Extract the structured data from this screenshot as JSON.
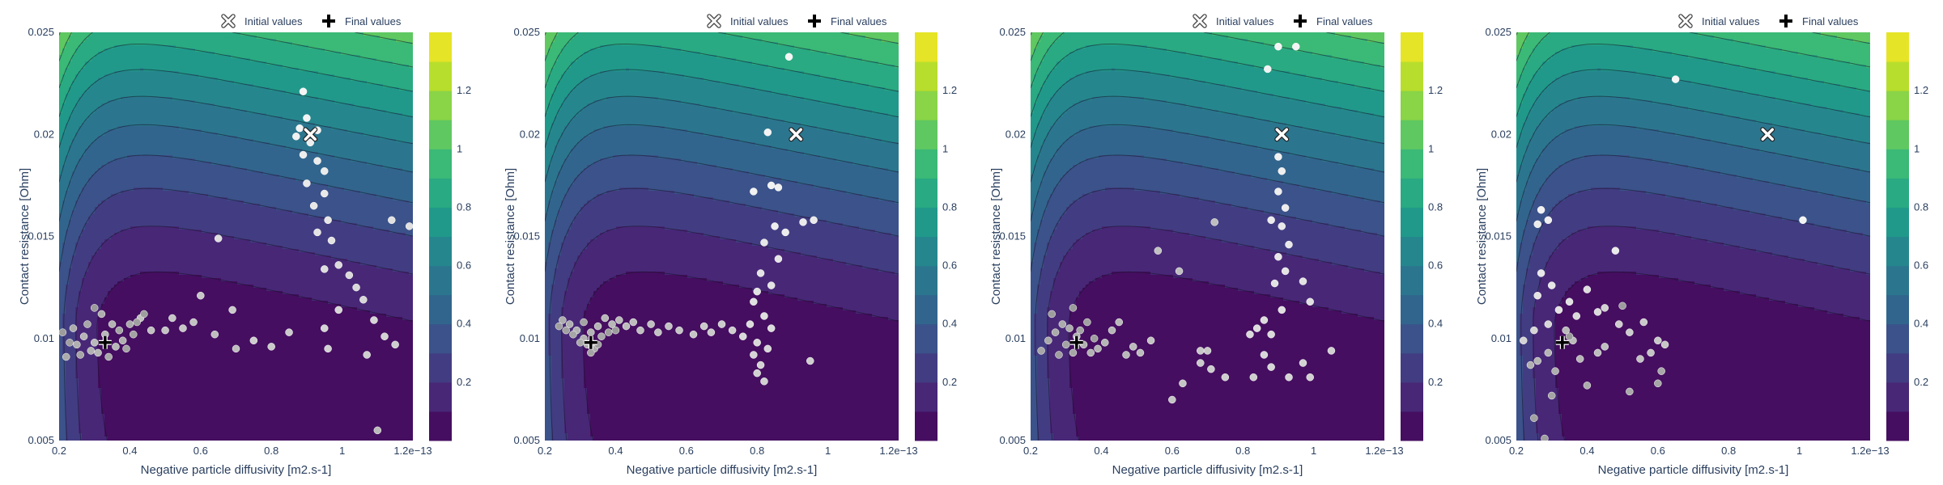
{
  "chart_data": [
    {
      "type": "contour",
      "xlabel": "Negative particle diffusivity [m2.s-1]",
      "ylabel": "Contact resistance [Ohm]",
      "xlim": [
        0.2,
        1.2
      ],
      "ylim": [
        0.005,
        0.025
      ],
      "xticks": [
        "0.2",
        "0.4",
        "0.6",
        "0.8",
        "1",
        "1.2e−13"
      ],
      "xtick_values": [
        0.2,
        0.4,
        0.6,
        0.8,
        1.0,
        1.2
      ],
      "yticks": [
        "0.005",
        "0.01",
        "0.015",
        "0.02",
        "0.025"
      ],
      "ytick_values": [
        0.005,
        0.01,
        0.015,
        0.02,
        0.025
      ],
      "colorbar_ticks": [
        "0.2",
        "0.4",
        "0.6",
        "0.8",
        "1",
        "1.2"
      ],
      "colorbar_range": [
        0,
        1.4
      ],
      "legend": [
        "Initial values",
        "Final values"
      ],
      "legend_position": "top-right",
      "initial_value": [
        0.91,
        0.02
      ],
      "final_value": [
        0.33,
        0.0098
      ],
      "contour_levels": [
        0.1,
        0.2,
        0.3,
        0.4,
        0.5,
        0.6,
        0.7,
        0.8,
        0.9,
        1.0,
        1.1,
        1.2,
        1.3
      ],
      "points": [
        [
          0.89,
          0.0221
        ],
        [
          0.9,
          0.0208
        ],
        [
          0.88,
          0.0203
        ],
        [
          0.93,
          0.0202
        ],
        [
          0.87,
          0.0199
        ],
        [
          0.91,
          0.0196
        ],
        [
          0.89,
          0.019
        ],
        [
          0.93,
          0.0187
        ],
        [
          0.95,
          0.0182
        ],
        [
          0.9,
          0.0176
        ],
        [
          0.95,
          0.0171
        ],
        [
          0.92,
          0.0165
        ],
        [
          0.96,
          0.0158
        ],
        [
          0.93,
          0.0152
        ],
        [
          0.97,
          0.0148
        ],
        [
          1.14,
          0.0158
        ],
        [
          1.19,
          0.0155
        ],
        [
          0.65,
          0.0149
        ],
        [
          0.95,
          0.0134
        ],
        [
          0.99,
          0.0136
        ],
        [
          1.02,
          0.0131
        ],
        [
          1.04,
          0.0125
        ],
        [
          1.06,
          0.0119
        ],
        [
          0.99,
          0.0114
        ],
        [
          1.09,
          0.0109
        ],
        [
          0.95,
          0.0105
        ],
        [
          1.12,
          0.0101
        ],
        [
          0.96,
          0.0095
        ],
        [
          1.07,
          0.0092
        ],
        [
          1.15,
          0.0097
        ],
        [
          0.75,
          0.0099
        ],
        [
          0.85,
          0.0103
        ],
        [
          0.8,
          0.0096
        ],
        [
          0.69,
          0.0114
        ],
        [
          0.6,
          0.0121
        ],
        [
          0.55,
          0.0105
        ],
        [
          0.52,
          0.011
        ],
        [
          0.5,
          0.0104
        ],
        [
          0.58,
          0.0108
        ],
        [
          0.43,
          0.011
        ],
        [
          0.46,
          0.0104
        ],
        [
          0.64,
          0.0102
        ],
        [
          0.7,
          0.0095
        ],
        [
          1.1,
          0.0055
        ],
        [
          0.3,
          0.0098
        ],
        [
          0.33,
          0.0102
        ],
        [
          0.36,
          0.0096
        ],
        [
          0.31,
          0.0093
        ],
        [
          0.27,
          0.0101
        ],
        [
          0.35,
          0.0107
        ],
        [
          0.29,
          0.0094
        ],
        [
          0.25,
          0.0097
        ],
        [
          0.38,
          0.0099
        ],
        [
          0.32,
          0.0112
        ],
        [
          0.24,
          0.0105
        ],
        [
          0.22,
          0.0091
        ],
        [
          0.4,
          0.0107
        ],
        [
          0.34,
          0.0091
        ],
        [
          0.28,
          0.0107
        ],
        [
          0.26,
          0.0092
        ],
        [
          0.37,
          0.0104
        ],
        [
          0.39,
          0.0095
        ],
        [
          0.41,
          0.0102
        ],
        [
          0.23,
          0.0098
        ],
        [
          0.42,
          0.0108
        ],
        [
          0.44,
          0.0112
        ],
        [
          0.21,
          0.0103
        ],
        [
          0.3,
          0.0115
        ]
      ]
    },
    {
      "type": "contour",
      "xlabel": "Negative particle diffusivity [m2.s-1]",
      "ylabel": "Contact resistance [Ohm]",
      "xlim": [
        0.2,
        1.2
      ],
      "ylim": [
        0.005,
        0.025
      ],
      "xticks": [
        "0.2",
        "0.4",
        "0.6",
        "0.8",
        "1",
        "1.2e−13"
      ],
      "xtick_values": [
        0.2,
        0.4,
        0.6,
        0.8,
        1.0,
        1.2
      ],
      "yticks": [
        "0.005",
        "0.01",
        "0.015",
        "0.02",
        "0.025"
      ],
      "ytick_values": [
        0.005,
        0.01,
        0.015,
        0.02,
        0.025
      ],
      "colorbar_ticks": [
        "0.2",
        "0.4",
        "0.6",
        "0.8",
        "1",
        "1.2"
      ],
      "colorbar_range": [
        0,
        1.4
      ],
      "legend": [
        "Initial values",
        "Final values"
      ],
      "legend_position": "top-right",
      "initial_value": [
        0.91,
        0.02
      ],
      "final_value": [
        0.33,
        0.0098
      ],
      "contour_levels": [
        0.1,
        0.2,
        0.3,
        0.4,
        0.5,
        0.6,
        0.7,
        0.8,
        0.9,
        1.0,
        1.1,
        1.2,
        1.3
      ],
      "points": [
        [
          0.89,
          0.0238
        ],
        [
          0.83,
          0.0201
        ],
        [
          0.79,
          0.0172
        ],
        [
          0.84,
          0.0175
        ],
        [
          0.86,
          0.0174
        ],
        [
          0.85,
          0.0155
        ],
        [
          0.88,
          0.0152
        ],
        [
          0.93,
          0.0157
        ],
        [
          0.96,
          0.0158
        ],
        [
          0.82,
          0.0147
        ],
        [
          0.86,
          0.0139
        ],
        [
          0.81,
          0.0132
        ],
        [
          0.84,
          0.0126
        ],
        [
          0.8,
          0.0123
        ],
        [
          0.79,
          0.0118
        ],
        [
          0.82,
          0.0111
        ],
        [
          0.78,
          0.0107
        ],
        [
          0.84,
          0.0105
        ],
        [
          0.76,
          0.0101
        ],
        [
          0.8,
          0.0098
        ],
        [
          0.83,
          0.0095
        ],
        [
          0.79,
          0.0092
        ],
        [
          0.81,
          0.0087
        ],
        [
          0.8,
          0.0083
        ],
        [
          0.82,
          0.0079
        ],
        [
          0.95,
          0.0089
        ],
        [
          0.73,
          0.0104
        ],
        [
          0.7,
          0.0107
        ],
        [
          0.67,
          0.0103
        ],
        [
          0.65,
          0.0106
        ],
        [
          0.62,
          0.0102
        ],
        [
          0.58,
          0.0104
        ],
        [
          0.55,
          0.0106
        ],
        [
          0.52,
          0.0103
        ],
        [
          0.5,
          0.0107
        ],
        [
          0.47,
          0.0104
        ],
        [
          0.45,
          0.0108
        ],
        [
          0.43,
          0.0106
        ],
        [
          0.41,
          0.0109
        ],
        [
          0.39,
          0.0107
        ],
        [
          0.37,
          0.011
        ],
        [
          0.35,
          0.0106
        ],
        [
          0.33,
          0.0103
        ],
        [
          0.31,
          0.01
        ],
        [
          0.29,
          0.0104
        ],
        [
          0.27,
          0.0107
        ],
        [
          0.25,
          0.0109
        ],
        [
          0.32,
          0.0097
        ],
        [
          0.34,
          0.0095
        ],
        [
          0.3,
          0.0098
        ],
        [
          0.36,
          0.0101
        ],
        [
          0.28,
          0.0102
        ],
        [
          0.33,
          0.0093
        ],
        [
          0.31,
          0.0108
        ],
        [
          0.26,
          0.0104
        ],
        [
          0.24,
          0.0106
        ],
        [
          0.38,
          0.0103
        ],
        [
          0.35,
          0.0097
        ],
        [
          0.4,
          0.0104
        ]
      ]
    },
    {
      "type": "contour",
      "xlabel": "Negative particle diffusivity [m2.s-1]",
      "ylabel": "Contact resistance [Ohm]",
      "xlim": [
        0.2,
        1.2
      ],
      "ylim": [
        0.005,
        0.025
      ],
      "xticks": [
        "0.2",
        "0.4",
        "0.6",
        "0.8",
        "1",
        "1.2e−13"
      ],
      "xtick_values": [
        0.2,
        0.4,
        0.6,
        0.8,
        1.0,
        1.2
      ],
      "yticks": [
        "0.005",
        "0.01",
        "0.015",
        "0.02",
        "0.025"
      ],
      "ytick_values": [
        0.005,
        0.01,
        0.015,
        0.02,
        0.025
      ],
      "colorbar_ticks": [
        "0.2",
        "0.4",
        "0.6",
        "0.8",
        "1",
        "1.2"
      ],
      "colorbar_range": [
        0,
        1.4
      ],
      "legend": [
        "Initial values",
        "Final values"
      ],
      "legend_position": "top-right",
      "initial_value": [
        0.91,
        0.02
      ],
      "final_value": [
        0.33,
        0.0098
      ],
      "contour_levels": [
        0.1,
        0.2,
        0.3,
        0.4,
        0.5,
        0.6,
        0.7,
        0.8,
        0.9,
        1.0,
        1.1,
        1.2,
        1.3
      ],
      "points": [
        [
          0.9,
          0.0243
        ],
        [
          0.95,
          0.0243
        ],
        [
          0.87,
          0.0232
        ],
        [
          0.9,
          0.0189
        ],
        [
          0.91,
          0.0182
        ],
        [
          0.9,
          0.0172
        ],
        [
          0.92,
          0.0164
        ],
        [
          0.88,
          0.0158
        ],
        [
          0.91,
          0.0155
        ],
        [
          0.93,
          0.0146
        ],
        [
          0.9,
          0.014
        ],
        [
          0.92,
          0.0133
        ],
        [
          0.89,
          0.0127
        ],
        [
          0.97,
          0.0128
        ],
        [
          0.99,
          0.0118
        ],
        [
          0.91,
          0.0114
        ],
        [
          0.84,
          0.0105
        ],
        [
          0.86,
          0.0109
        ],
        [
          0.88,
          0.0102
        ],
        [
          0.82,
          0.0102
        ],
        [
          0.86,
          0.0092
        ],
        [
          0.88,
          0.0086
        ],
        [
          0.93,
          0.0081
        ],
        [
          0.97,
          0.0088
        ],
        [
          0.99,
          0.0081
        ],
        [
          1.05,
          0.0094
        ],
        [
          0.83,
          0.0081
        ],
        [
          0.75,
          0.0081
        ],
        [
          0.71,
          0.0085
        ],
        [
          0.68,
          0.0088
        ],
        [
          0.68,
          0.0094
        ],
        [
          0.7,
          0.0094
        ],
        [
          0.63,
          0.0078
        ],
        [
          0.6,
          0.007
        ],
        [
          0.54,
          0.0099
        ],
        [
          0.56,
          0.0143
        ],
        [
          0.62,
          0.0133
        ],
        [
          0.72,
          0.0157
        ],
        [
          0.51,
          0.0093
        ],
        [
          0.49,
          0.0096
        ],
        [
          0.47,
          0.0092
        ],
        [
          0.45,
          0.0108
        ],
        [
          0.43,
          0.0104
        ],
        [
          0.41,
          0.0098
        ],
        [
          0.39,
          0.0095
        ],
        [
          0.37,
          0.0093
        ],
        [
          0.35,
          0.0097
        ],
        [
          0.33,
          0.0101
        ],
        [
          0.31,
          0.0105
        ],
        [
          0.29,
          0.0107
        ],
        [
          0.27,
          0.0103
        ],
        [
          0.25,
          0.0099
        ],
        [
          0.23,
          0.0094
        ],
        [
          0.32,
          0.0093
        ],
        [
          0.34,
          0.0104
        ],
        [
          0.3,
          0.0097
        ],
        [
          0.36,
          0.0108
        ],
        [
          0.28,
          0.0092
        ],
        [
          0.38,
          0.01
        ],
        [
          0.26,
          0.0112
        ],
        [
          0.32,
          0.0115
        ]
      ]
    },
    {
      "type": "contour",
      "xlabel": "Negative particle diffusivity [m2.s-1]",
      "ylabel": "Contact resistance [Ohm]",
      "xlim": [
        0.2,
        1.2
      ],
      "ylim": [
        0.005,
        0.025
      ],
      "xticks": [
        "0.2",
        "0.4",
        "0.6",
        "0.8",
        "1",
        "1.2e−13"
      ],
      "xtick_values": [
        0.2,
        0.4,
        0.6,
        0.8,
        1.0,
        1.2
      ],
      "yticks": [
        "0.005",
        "0.01",
        "0.015",
        "0.02",
        "0.025"
      ],
      "ytick_values": [
        0.005,
        0.01,
        0.015,
        0.02,
        0.025
      ],
      "colorbar_ticks": [
        "0.2",
        "0.4",
        "0.6",
        "0.8",
        "1",
        "1.2"
      ],
      "colorbar_range": [
        0,
        1.4
      ],
      "legend": [
        "Initial values",
        "Final values"
      ],
      "legend_position": "top-right",
      "initial_value": [
        0.91,
        0.02
      ],
      "final_value": [
        0.33,
        0.0098
      ],
      "contour_levels": [
        0.1,
        0.2,
        0.3,
        0.4,
        0.5,
        0.6,
        0.7,
        0.8,
        0.9,
        1.0,
        1.1,
        1.2,
        1.3
      ],
      "points": [
        [
          0.65,
          0.0227
        ],
        [
          1.01,
          0.0158
        ],
        [
          0.27,
          0.0163
        ],
        [
          0.29,
          0.0158
        ],
        [
          0.26,
          0.0156
        ],
        [
          0.48,
          0.0143
        ],
        [
          0.27,
          0.0132
        ],
        [
          0.3,
          0.0126
        ],
        [
          0.26,
          0.0121
        ],
        [
          0.32,
          0.0114
        ],
        [
          0.35,
          0.0118
        ],
        [
          0.4,
          0.0124
        ],
        [
          0.43,
          0.0113
        ],
        [
          0.37,
          0.0111
        ],
        [
          0.29,
          0.0107
        ],
        [
          0.25,
          0.0104
        ],
        [
          0.22,
          0.0099
        ],
        [
          0.45,
          0.0115
        ],
        [
          0.49,
          0.0107
        ],
        [
          0.52,
          0.0103
        ],
        [
          0.56,
          0.0108
        ],
        [
          0.6,
          0.0099
        ],
        [
          0.62,
          0.0097
        ],
        [
          0.58,
          0.0093
        ],
        [
          0.55,
          0.009
        ],
        [
          0.45,
          0.0096
        ],
        [
          0.43,
          0.0093
        ],
        [
          0.36,
          0.0099
        ],
        [
          0.34,
          0.0104
        ],
        [
          0.38,
          0.009
        ],
        [
          0.29,
          0.0093
        ],
        [
          0.26,
          0.0089
        ],
        [
          0.24,
          0.0087
        ],
        [
          0.31,
          0.0084
        ],
        [
          0.4,
          0.0077
        ],
        [
          0.52,
          0.0074
        ],
        [
          0.61,
          0.0084
        ],
        [
          0.6,
          0.0078
        ],
        [
          0.3,
          0.0072
        ],
        [
          0.25,
          0.0061
        ],
        [
          0.28,
          0.0051
        ],
        [
          0.5,
          0.0116
        ],
        [
          0.35,
          0.0101
        ]
      ]
    }
  ]
}
